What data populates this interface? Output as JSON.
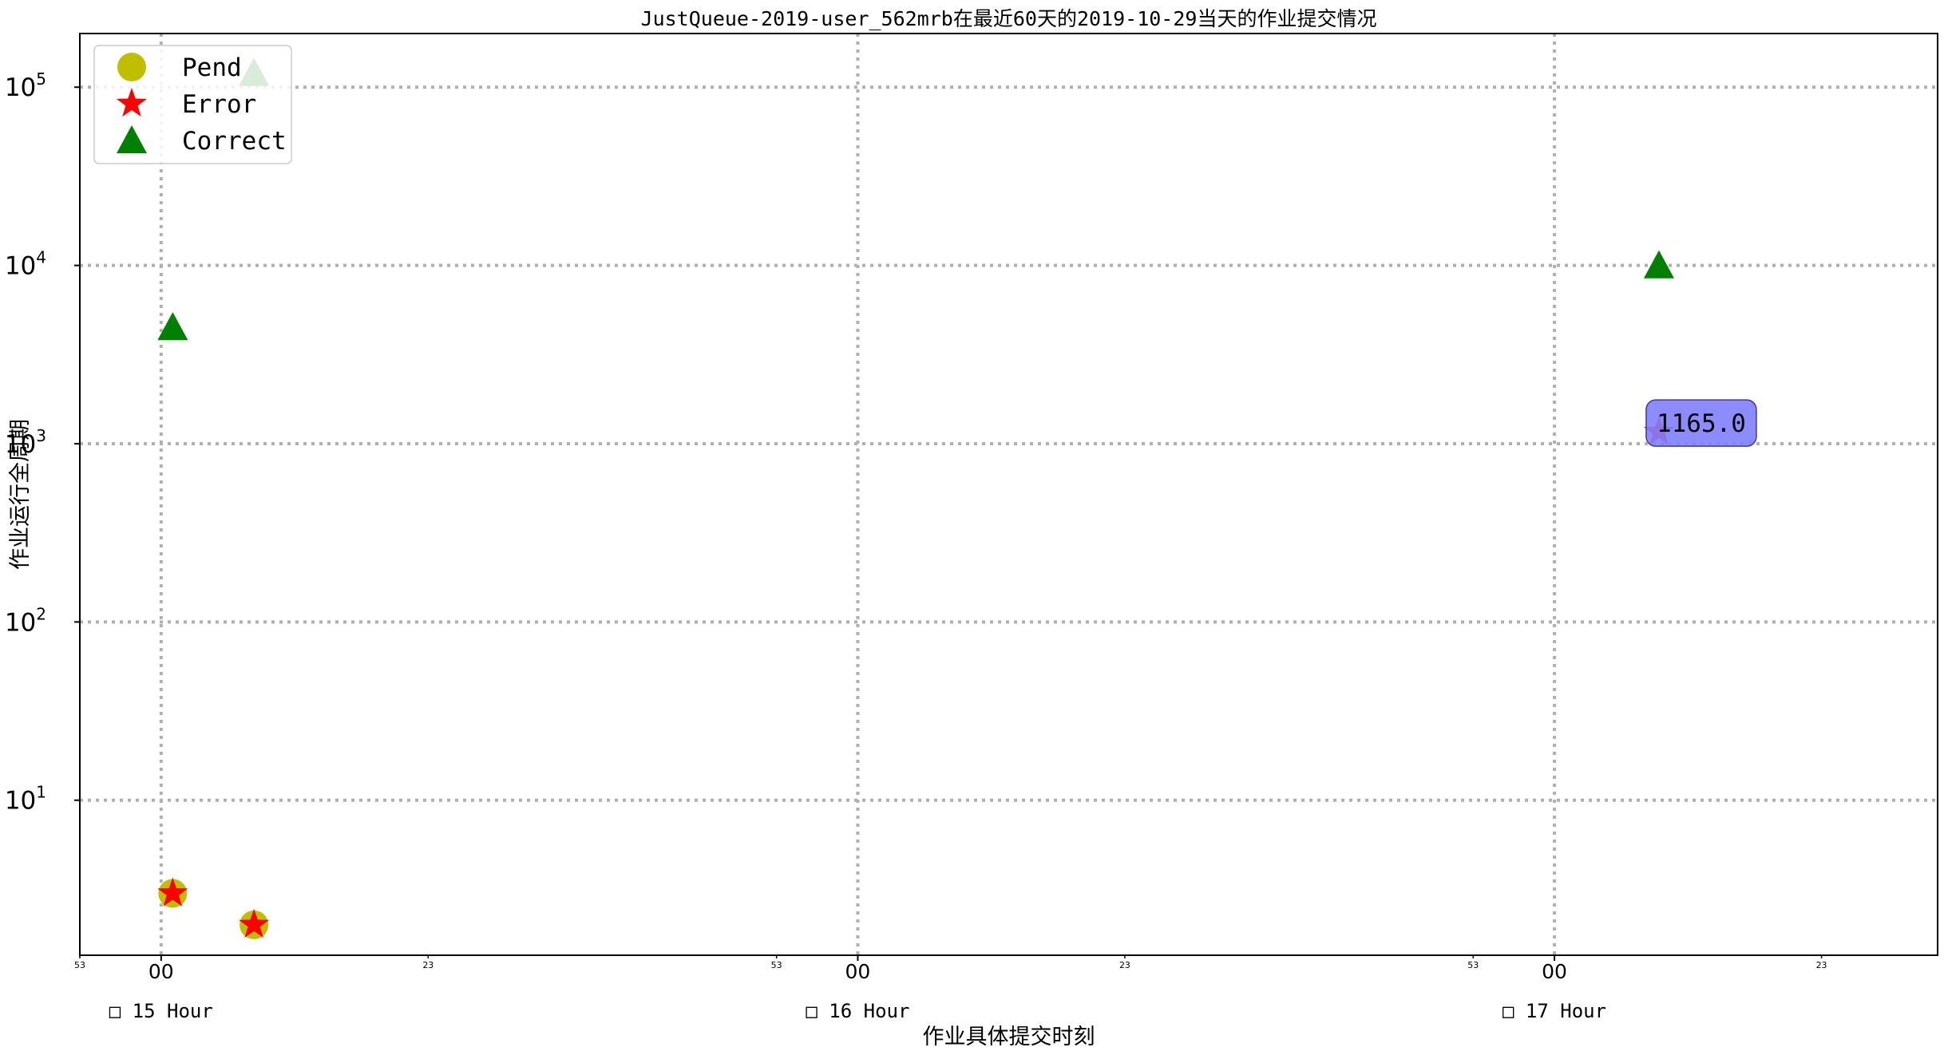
{
  "chart_data": {
    "type": "scatter",
    "title": "JustQueue-2019-user_562mrb在最近60天的2019-10-29当天的作业提交情况",
    "xlabel": "作业具体提交时刻",
    "ylabel": "作业运行全周期",
    "yscale": "log",
    "ylim": [
      1.35,
      200000
    ],
    "xlim": [
      "14:53",
      "17:33"
    ],
    "grid": true,
    "legend_position": "upper-left",
    "y_ticks": [
      {
        "value": 10,
        "base": "10",
        "exp": "1"
      },
      {
        "value": 100,
        "base": "10",
        "exp": "2"
      },
      {
        "value": 1000,
        "base": "10",
        "exp": "3"
      },
      {
        "value": 10000,
        "base": "10",
        "exp": "4"
      },
      {
        "value": 100000,
        "base": "10",
        "exp": "5"
      }
    ],
    "x_major_ticks": [
      {
        "time": "15:00",
        "label": "00"
      },
      {
        "time": "16:00",
        "label": "00"
      },
      {
        "time": "17:00",
        "label": "00"
      }
    ],
    "x_minor_ticks": [
      {
        "time": "14:53",
        "label": "53"
      },
      {
        "time": "15:23",
        "label": "23"
      },
      {
        "time": "15:53",
        "label": "53"
      },
      {
        "time": "16:23",
        "label": "23"
      },
      {
        "time": "16:53",
        "label": "53"
      },
      {
        "time": "17:23",
        "label": "23"
      }
    ],
    "hour_labels": [
      {
        "time": "15:00",
        "label": "□ 15 Hour"
      },
      {
        "time": "16:00",
        "label": "□ 16 Hour"
      },
      {
        "time": "17:00",
        "label": "□ 17 Hour"
      }
    ],
    "series": [
      {
        "name": "Pend",
        "marker": "circle",
        "color": "#bfbf00",
        "points": [
          {
            "x": "15:01",
            "y": 3
          },
          {
            "x": "15:08",
            "y": 2
          }
        ]
      },
      {
        "name": "Error",
        "marker": "star",
        "color": "#ff0000",
        "points": [
          {
            "x": "15:01",
            "y": 3
          },
          {
            "x": "15:08",
            "y": 2
          },
          {
            "x": "17:09",
            "y": 1165
          }
        ]
      },
      {
        "name": "Correct",
        "marker": "triangle",
        "color": "#008000",
        "points": [
          {
            "x": "15:01",
            "y": 4500
          },
          {
            "x": "15:08",
            "y": 120000
          },
          {
            "x": "17:09",
            "y": 10000
          }
        ]
      }
    ],
    "annotations": [
      {
        "x": "17:09",
        "y": 1165,
        "text": "1165.0",
        "color": "#8080ff"
      }
    ]
  }
}
